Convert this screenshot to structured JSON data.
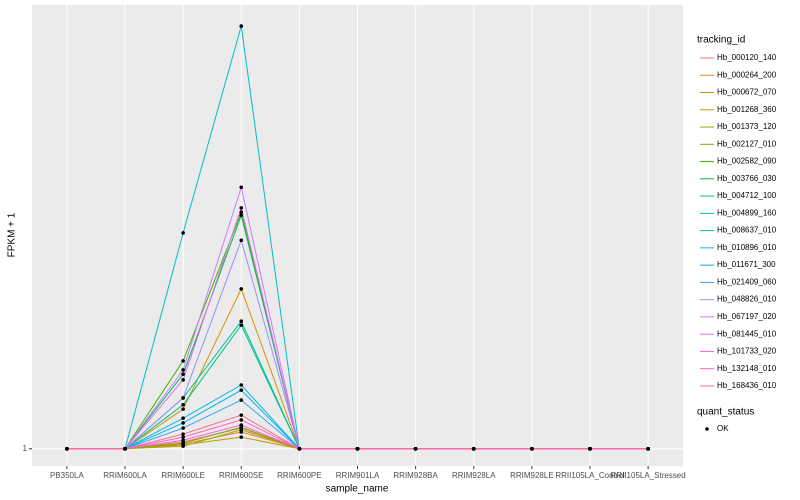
{
  "chart_data": {
    "type": "line",
    "x_label": "sample_name",
    "y_label": "FPKM + 1",
    "legend_title": "tracking_id",
    "point_legend": {
      "title": "quant_status",
      "label": "OK",
      "color": "#000000"
    },
    "categories": [
      "PB350LA",
      "RRIM600LA",
      "RRIM600LE",
      "RRIM600SE",
      "RRIM600PE",
      "RRIM901LA",
      "RRIM928BA",
      "RRIM928LA",
      "RRIM928LE",
      "RRII105LA_Control",
      "RRII105LA_Stressed"
    ],
    "ylim": [
      0.96,
      2.03
    ],
    "yticks": [
      1
    ],
    "grid": true,
    "series": [
      {
        "name": "Hb_000120_140",
        "color": "#F8766D",
        "values": [
          1,
          1,
          1.016,
          1.048,
          1,
          1,
          1,
          1,
          1,
          1,
          1
        ]
      },
      {
        "name": "Hb_000264_200",
        "color": "#EA8331",
        "values": [
          1,
          1,
          1.011,
          1.039,
          1,
          1,
          1,
          1,
          1,
          1,
          1
        ]
      },
      {
        "name": "Hb_000672_070",
        "color": "#D89000",
        "values": [
          1,
          1,
          1.092,
          1.371,
          1,
          1,
          1,
          1,
          1,
          1,
          1
        ]
      },
      {
        "name": "Hb_001268_360",
        "color": "#C09B00",
        "values": [
          1,
          1,
          1.009,
          1.027,
          1,
          1,
          1,
          1,
          1,
          1,
          1
        ]
      },
      {
        "name": "Hb_001373_120",
        "color": "#A3A500",
        "values": [
          1,
          1,
          1.006,
          1.044,
          1,
          1,
          1,
          1,
          1,
          1,
          1
        ]
      },
      {
        "name": "Hb_002127_010",
        "color": "#7CAE00",
        "values": [
          1,
          1,
          1.013,
          1.05,
          1,
          1,
          1,
          1,
          1,
          1,
          1
        ]
      },
      {
        "name": "Hb_002582_090",
        "color": "#39B600",
        "values": [
          1,
          1,
          1.204,
          1.549,
          1,
          1,
          1,
          1,
          1,
          1,
          1
        ]
      },
      {
        "name": "Hb_003766_030",
        "color": "#00BB4E",
        "values": [
          1,
          1,
          1.173,
          1.542,
          1,
          1,
          1,
          1,
          1,
          1,
          1
        ]
      },
      {
        "name": "Hb_004712_100",
        "color": "#00BF7D",
        "values": [
          1,
          1,
          1.102,
          1.287,
          1,
          1,
          1,
          1,
          1,
          1,
          1
        ]
      },
      {
        "name": "Hb_004899_160",
        "color": "#00C1A3",
        "values": [
          1,
          1,
          1.118,
          1.296,
          1,
          1,
          1,
          1,
          1,
          1,
          1
        ]
      },
      {
        "name": "Hb_008637_010",
        "color": "#00BFC4",
        "values": [
          1,
          1,
          1.501,
          1.981,
          1,
          1,
          1,
          1,
          1,
          1,
          1
        ]
      },
      {
        "name": "Hb_010896_010",
        "color": "#00BAE0",
        "values": [
          1,
          1,
          1.071,
          1.148,
          1,
          1,
          1,
          1,
          1,
          1,
          1
        ]
      },
      {
        "name": "Hb_011671_300",
        "color": "#00B0F6",
        "values": [
          1,
          1,
          1.06,
          1.136,
          1,
          1,
          1,
          1,
          1,
          1,
          1
        ]
      },
      {
        "name": "Hb_021409_060",
        "color": "#35A2FF",
        "values": [
          1,
          1,
          1.048,
          1.113,
          1,
          1,
          1,
          1,
          1,
          1,
          1
        ]
      },
      {
        "name": "Hb_048826_010",
        "color": "#9590FF",
        "values": [
          1,
          1,
          1.118,
          1.484,
          1,
          1,
          1,
          1,
          1,
          1,
          1
        ]
      },
      {
        "name": "Hb_067197_020",
        "color": "#C77CFF",
        "values": [
          1,
          1,
          1.183,
          1.607,
          1,
          1,
          1,
          1,
          1,
          1,
          1
        ]
      },
      {
        "name": "Hb_081445_010",
        "color": "#E76BF3",
        "values": [
          1,
          1,
          1.16,
          1.559,
          1,
          1,
          1,
          1,
          1,
          1,
          1
        ]
      },
      {
        "name": "Hb_101733_020",
        "color": "#FA62DB",
        "values": [
          1,
          1,
          1.02,
          1.055,
          1,
          1,
          1,
          1,
          1,
          1,
          1
        ]
      },
      {
        "name": "Hb_132148_010",
        "color": "#FF62BC",
        "values": [
          1,
          1,
          1.027,
          1.067,
          1,
          1,
          1,
          1,
          1,
          1,
          1
        ]
      },
      {
        "name": "Hb_168436_010",
        "color": "#FF6C91",
        "values": [
          1,
          1,
          1.034,
          1.078,
          1,
          1,
          1,
          1,
          1,
          1,
          1
        ]
      }
    ]
  }
}
